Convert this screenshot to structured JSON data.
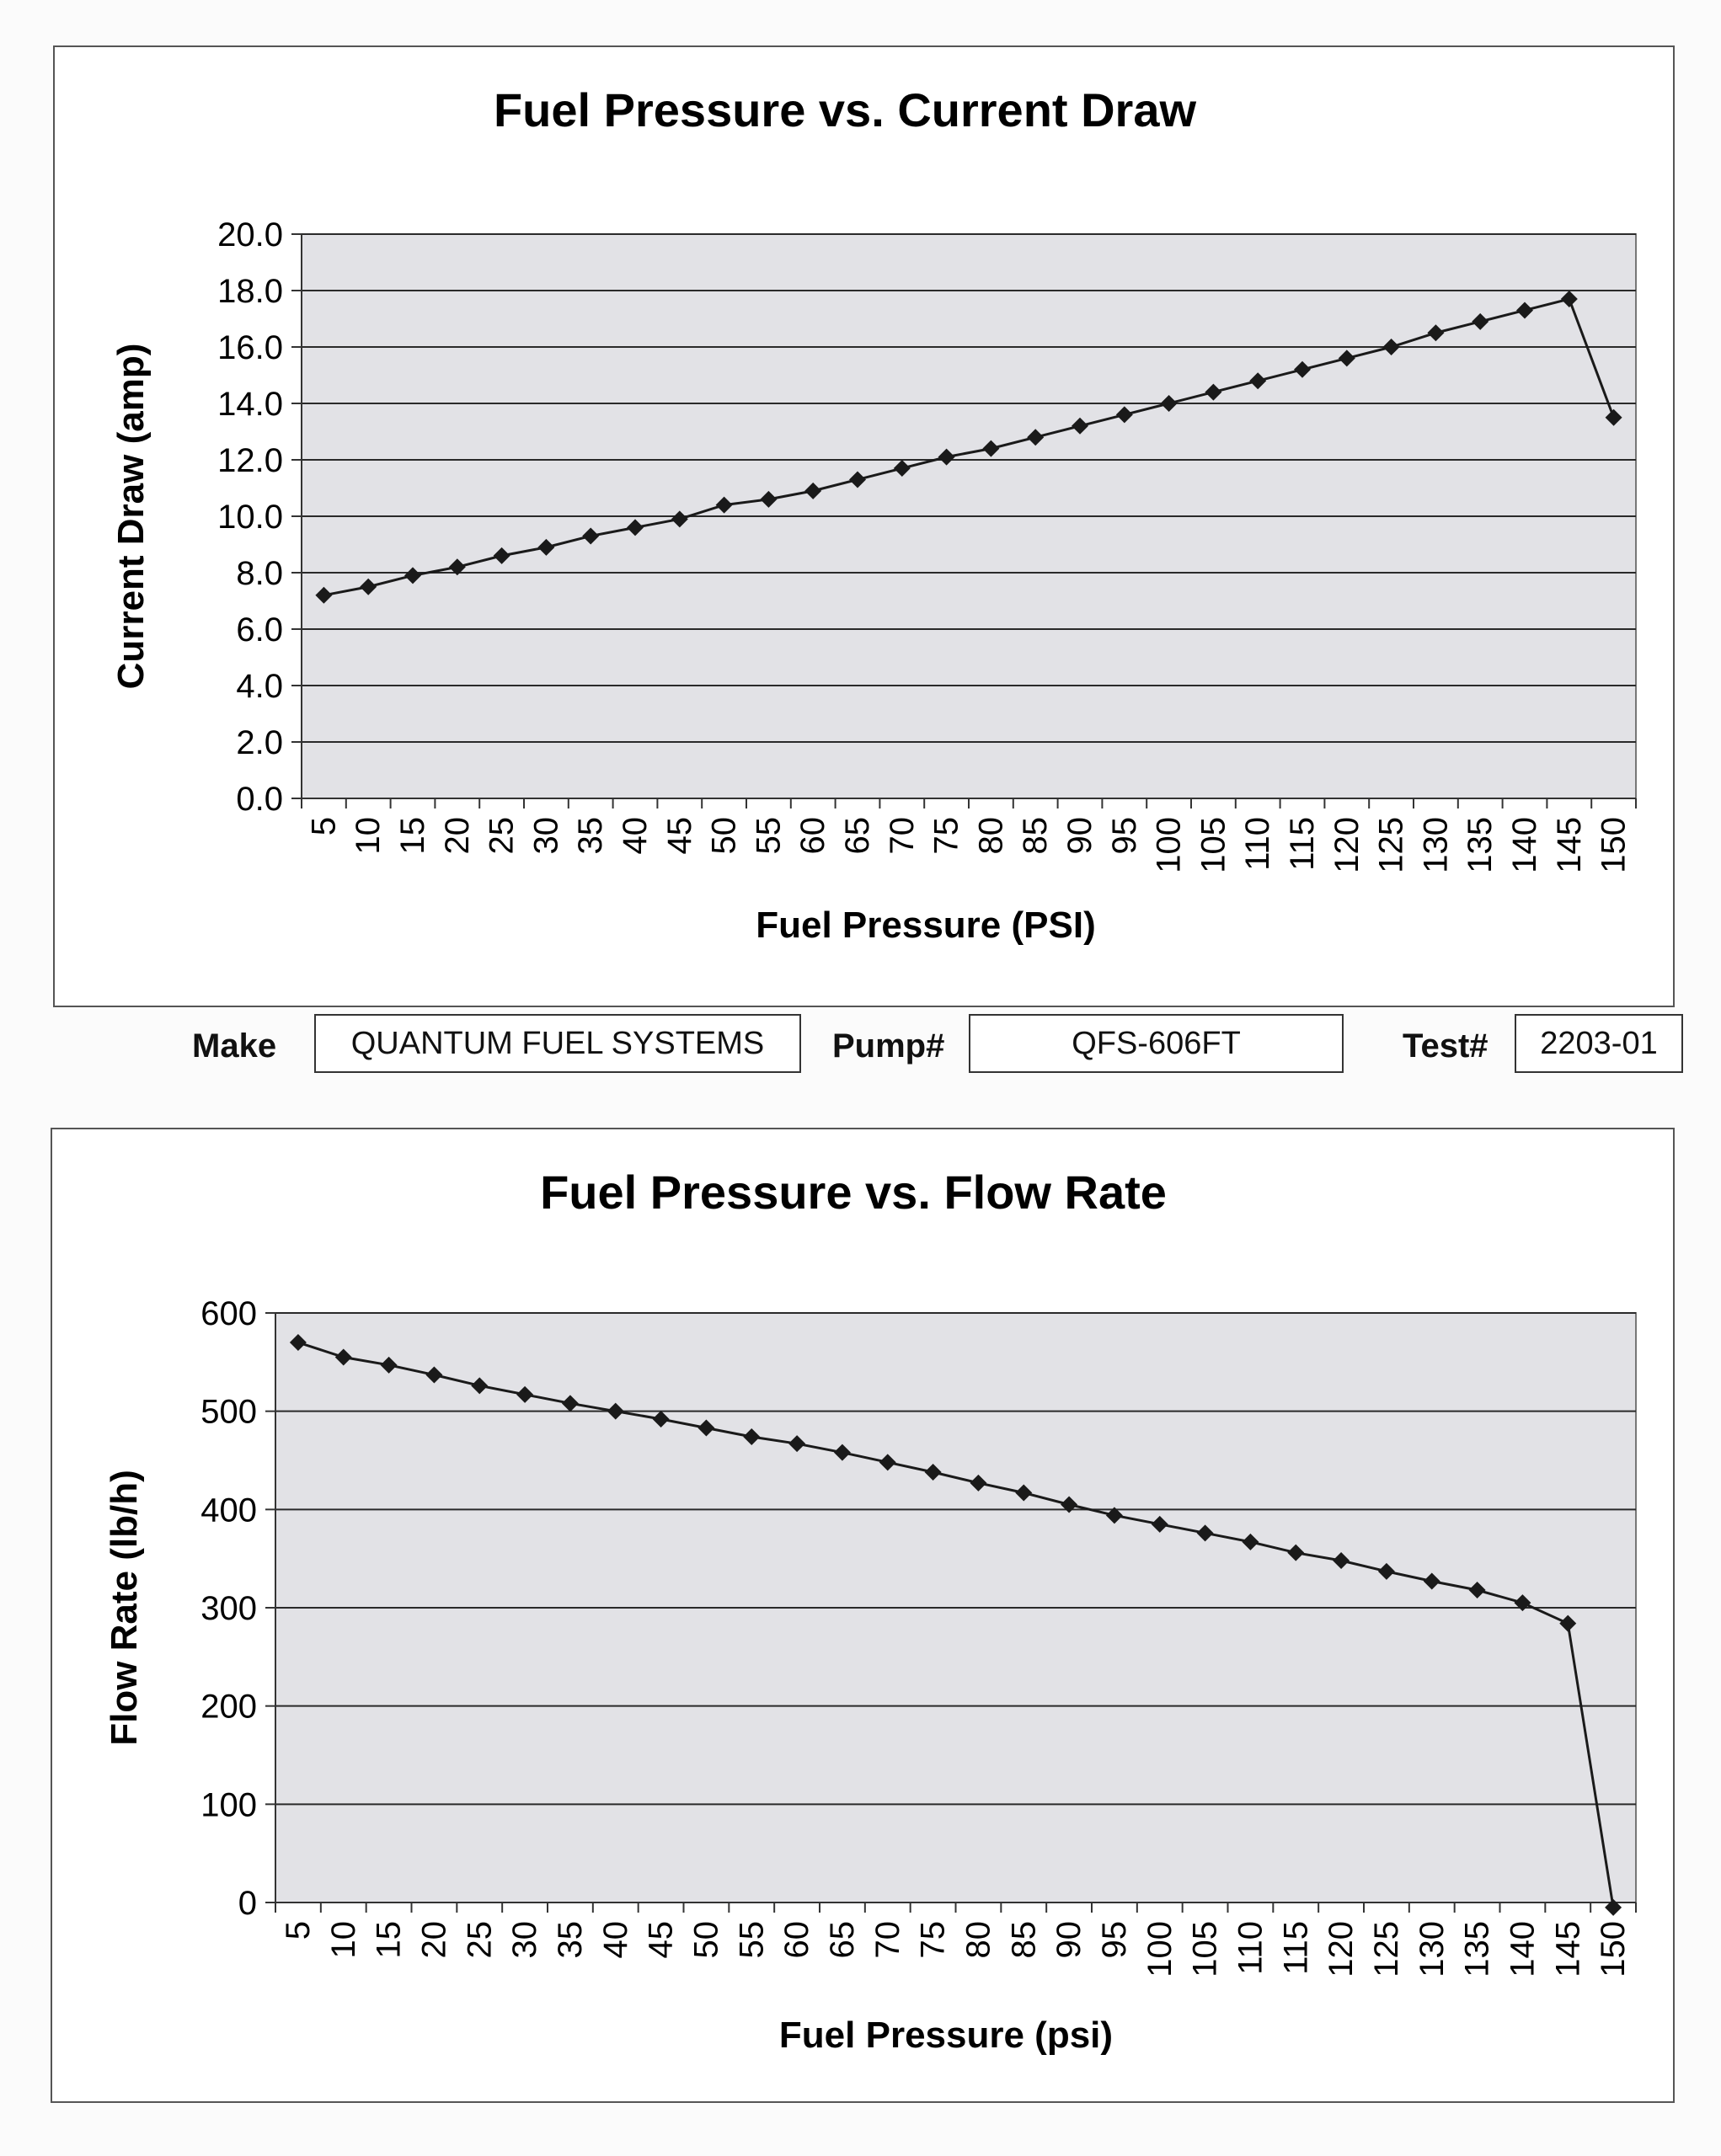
{
  "colors": {
    "plot_bg": "#e2e2e6",
    "grid": "#2a2a2a",
    "line": "#1a1a1a",
    "marker": "#1a1a1a"
  },
  "chart_data": [
    {
      "type": "line",
      "title": "Fuel Pressure vs. Current Draw",
      "xlabel": "Fuel Pressure (PSI)",
      "ylabel": "Current Draw (amp)",
      "ylim": [
        0,
        20
      ],
      "yticks": [
        "0.0",
        "2.0",
        "4.0",
        "6.0",
        "8.0",
        "10.0",
        "12.0",
        "14.0",
        "16.0",
        "18.0",
        "20.0"
      ],
      "grid": true,
      "categories": [
        "5",
        "10",
        "15",
        "20",
        "25",
        "30",
        "35",
        "40",
        "45",
        "50",
        "55",
        "60",
        "65",
        "70",
        "75",
        "80",
        "85",
        "90",
        "95",
        "100",
        "105",
        "110",
        "115",
        "120",
        "125",
        "130",
        "135",
        "140",
        "145",
        "150"
      ],
      "series": [
        {
          "name": "Current Draw",
          "values": [
            7.2,
            7.5,
            7.9,
            8.2,
            8.6,
            8.9,
            9.3,
            9.6,
            9.9,
            10.4,
            10.6,
            10.9,
            11.3,
            11.7,
            12.1,
            12.4,
            12.8,
            13.2,
            13.6,
            14.0,
            14.4,
            14.8,
            15.2,
            15.6,
            16.0,
            16.5,
            16.9,
            17.3,
            17.7,
            13.5
          ]
        }
      ]
    },
    {
      "type": "line",
      "title": "Fuel Pressure vs. Flow Rate",
      "xlabel": "Fuel Pressure (psi)",
      "ylabel": "Flow Rate (lb/h)",
      "ylim": [
        0,
        600
      ],
      "yticks": [
        "0",
        "100",
        "200",
        "300",
        "400",
        "500",
        "600"
      ],
      "grid": true,
      "categories": [
        "5",
        "10",
        "15",
        "20",
        "25",
        "30",
        "35",
        "40",
        "45",
        "50",
        "55",
        "60",
        "65",
        "70",
        "75",
        "80",
        "85",
        "90",
        "95",
        "100",
        "105",
        "110",
        "115",
        "120",
        "125",
        "130",
        "135",
        "140",
        "145",
        "150"
      ],
      "series": [
        {
          "name": "Flow Rate",
          "values": [
            570,
            555,
            547,
            537,
            526,
            517,
            508,
            500,
            492,
            483,
            474,
            467,
            458,
            448,
            438,
            427,
            417,
            405,
            394,
            385,
            376,
            367,
            356,
            348,
            337,
            327,
            318,
            305,
            284,
            -5
          ]
        }
      ]
    }
  ],
  "info": {
    "make_label": "Make",
    "make_value": "QUANTUM FUEL SYSTEMS",
    "pump_label": "Pump#",
    "pump_value": "QFS-606FT",
    "test_label": "Test#",
    "test_value": "2203-01"
  }
}
